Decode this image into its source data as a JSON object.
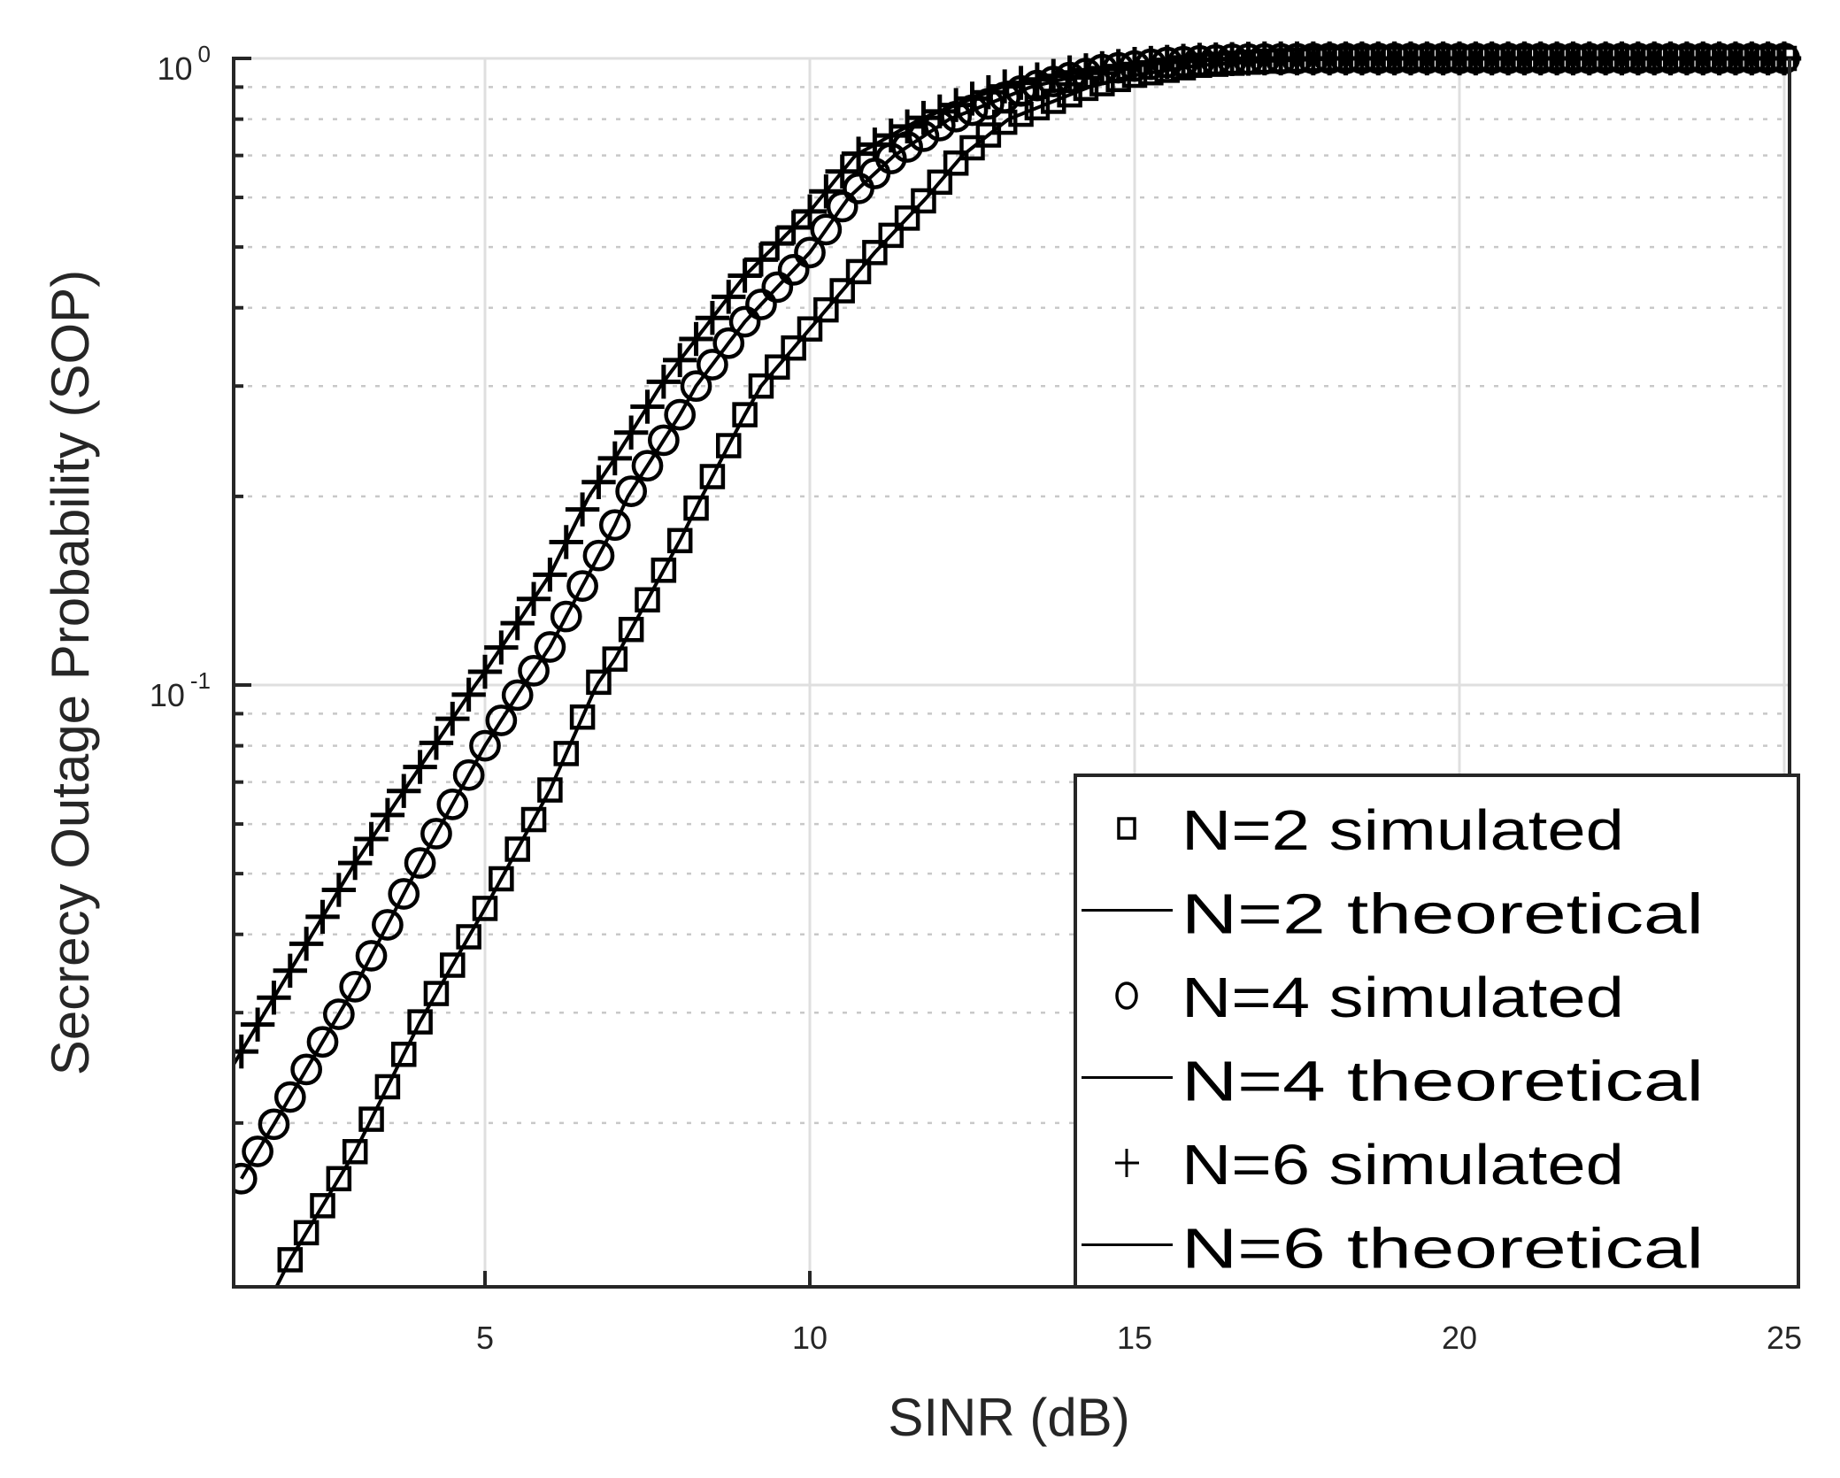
{
  "chart_data": {
    "type": "line",
    "title": "",
    "xlabel": "SINR (dB)",
    "ylabel": "Secrecy Outage Probability (SOP)",
    "xscale": "linear",
    "yscale": "log",
    "xlim": [
      1.13,
      25
    ],
    "ylim": [
      0.011,
      1
    ],
    "x_ticks": [
      5,
      10,
      15,
      20,
      25
    ],
    "x_tick_labels": [
      "5",
      "10",
      "15",
      "20",
      "25"
    ],
    "y_ticks": [
      0.1,
      1
    ],
    "y_tick_labels": [
      {
        "base": "10",
        "exp": "-1"
      },
      {
        "base": "10",
        "exp": "0"
      }
    ],
    "y_minor_ticks": [
      0.02,
      0.03,
      0.04,
      0.05,
      0.06,
      0.07,
      0.08,
      0.09,
      0.2,
      0.3,
      0.4,
      0.5,
      0.6,
      0.7,
      0.8,
      0.9
    ],
    "grid": {
      "major": true,
      "minor": true,
      "major_color": "#dfdfdf",
      "minor_color": "#c8c8c8",
      "minor_style": "dotted"
    },
    "marker_step_db": 0.25,
    "legend_position": "lower right",
    "series": [
      {
        "name": "N=2",
        "marker": "square",
        "simulated_label": "N=2 simulated",
        "theoretical_label": "N=2 theoretical",
        "x_start": 2.0,
        "points": [
          [
            1.7,
            0.0105
          ],
          [
            2,
            0.0121
          ],
          [
            3,
            0.018
          ],
          [
            4,
            0.029
          ],
          [
            5,
            0.044
          ],
          [
            6,
            0.068
          ],
          [
            6.72,
            0.1
          ],
          [
            7,
            0.11
          ],
          [
            8,
            0.17
          ],
          [
            8.34,
            0.2
          ],
          [
            9,
            0.27
          ],
          [
            9.25,
            0.3
          ],
          [
            10,
            0.37
          ],
          [
            11,
            0.49
          ],
          [
            11.8,
            0.6
          ],
          [
            12.35,
            0.7
          ],
          [
            13.06,
            0.8
          ],
          [
            14.3,
            0.9
          ],
          [
            15,
            0.94
          ],
          [
            16,
            0.975
          ],
          [
            17,
            0.99
          ],
          [
            18,
            0.998
          ],
          [
            19,
            1.0
          ],
          [
            25,
            1.0
          ]
        ]
      },
      {
        "name": "N=4",
        "marker": "circle",
        "simulated_label": "N=4 simulated",
        "theoretical_label": "N=4 theoretical",
        "x_start": 1.25,
        "points": [
          [
            1.25,
            0.0163
          ],
          [
            2,
            0.022
          ],
          [
            3,
            0.033
          ],
          [
            4,
            0.052
          ],
          [
            5,
            0.08
          ],
          [
            5.6,
            0.1
          ],
          [
            6,
            0.115
          ],
          [
            7,
            0.18
          ],
          [
            7.2,
            0.2
          ],
          [
            8,
            0.27
          ],
          [
            8.25,
            0.3
          ],
          [
            9,
            0.38
          ],
          [
            10,
            0.49
          ],
          [
            10.6,
            0.6
          ],
          [
            11.3,
            0.7
          ],
          [
            12.15,
            0.8
          ],
          [
            13.4,
            0.9
          ],
          [
            14.5,
            0.96
          ],
          [
            15.5,
            0.985
          ],
          [
            16.5,
            0.997
          ],
          [
            18,
            1.0
          ],
          [
            25,
            1.0
          ]
        ]
      },
      {
        "name": "N=6",
        "marker": "plus",
        "simulated_label": "N=6 simulated",
        "theoretical_label": "N=6 theoretical",
        "x_start": 1.13,
        "points": [
          [
            1.13,
            0.0248
          ],
          [
            2,
            0.035
          ],
          [
            3,
            0.052
          ],
          [
            4,
            0.074
          ],
          [
            4.85,
            0.1
          ],
          [
            5,
            0.105
          ],
          [
            6,
            0.15
          ],
          [
            6.6,
            0.2
          ],
          [
            7,
            0.23
          ],
          [
            7.7,
            0.3
          ],
          [
            8,
            0.33
          ],
          [
            9,
            0.45
          ],
          [
            10,
            0.57
          ],
          [
            10.7,
            0.7
          ],
          [
            11.7,
            0.8
          ],
          [
            12.95,
            0.9
          ],
          [
            14,
            0.95
          ],
          [
            15,
            0.98
          ],
          [
            16,
            0.995
          ],
          [
            17,
            1.0
          ],
          [
            25,
            1.0
          ]
        ]
      }
    ]
  },
  "legend": {
    "items": [
      {
        "marker": "square",
        "label": "N=2 simulated"
      },
      {
        "marker": "line",
        "label": "N=2 theoretical"
      },
      {
        "marker": "circle",
        "label": "N=4 simulated"
      },
      {
        "marker": "line",
        "label": "N=4 theoretical"
      },
      {
        "marker": "plus",
        "label": "N=6 simulated"
      },
      {
        "marker": "line",
        "label": "N=6 theoretical"
      }
    ]
  },
  "axes": {
    "xlabel": "SINR (dB)",
    "ylabel": "Secrecy Outage Probability (SOP)"
  }
}
